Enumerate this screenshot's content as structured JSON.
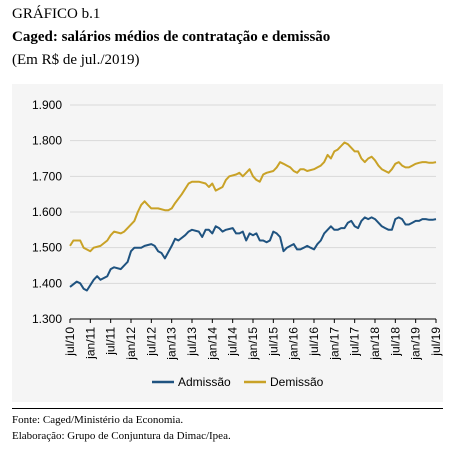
{
  "header": {
    "label": "GRÁFICO b.1",
    "title": "Caged: salários médios de contratação e demissão",
    "unit": "(Em R$ de jul./2019)"
  },
  "footer": {
    "source": "Fonte: Caged/Ministério da Economia.",
    "credit": "Elaboração: Grupo de Conjuntura da Dimac/Ipea."
  },
  "chart_data": {
    "type": "line",
    "title": "",
    "xlabel": "",
    "ylabel": "",
    "ylim": [
      1300,
      1900
    ],
    "yticks": [
      "1.900",
      "1.800",
      "1.700",
      "1.600",
      "1.500",
      "1.400",
      "1.300"
    ],
    "x_start": "2010-07",
    "x_end": "2019-07",
    "xticks": [
      "jul/10",
      "jan/11",
      "jul/11",
      "jan/12",
      "jul/12",
      "jan/13",
      "jul/13",
      "jan/14",
      "jul/14",
      "jan/15",
      "jul/15",
      "jan/16",
      "jul/16",
      "jan/17",
      "jul/17",
      "jan/18",
      "jul/18",
      "jan/19",
      "jul/19"
    ],
    "grid": true,
    "legend_position": "bottom",
    "series": [
      {
        "name": "Admissão",
        "color": "#1f5380",
        "values": [
          [
            0,
            1390
          ],
          [
            2,
            1405
          ],
          [
            3,
            1400
          ],
          [
            4,
            1385
          ],
          [
            5,
            1380
          ],
          [
            7,
            1410
          ],
          [
            8,
            1420
          ],
          [
            9,
            1410
          ],
          [
            11,
            1420
          ],
          [
            12,
            1440
          ],
          [
            13,
            1445
          ],
          [
            15,
            1440
          ],
          [
            17,
            1460
          ],
          [
            18,
            1490
          ],
          [
            19,
            1500
          ],
          [
            21,
            1500
          ],
          [
            22,
            1505
          ],
          [
            24,
            1510
          ],
          [
            25,
            1505
          ],
          [
            26,
            1490
          ],
          [
            27,
            1485
          ],
          [
            28,
            1470
          ],
          [
            30,
            1505
          ],
          [
            31,
            1525
          ],
          [
            32,
            1520
          ],
          [
            34,
            1535
          ],
          [
            35,
            1545
          ],
          [
            36,
            1550
          ],
          [
            38,
            1545
          ],
          [
            39,
            1530
          ],
          [
            40,
            1550
          ],
          [
            41,
            1550
          ],
          [
            42,
            1540
          ],
          [
            43,
            1560
          ],
          [
            44,
            1555
          ],
          [
            45,
            1545
          ],
          [
            46,
            1550
          ],
          [
            48,
            1555
          ],
          [
            49,
            1540
          ],
          [
            50,
            1540
          ],
          [
            51,
            1545
          ],
          [
            52,
            1520
          ],
          [
            53,
            1540
          ],
          [
            54,
            1535
          ],
          [
            55,
            1540
          ],
          [
            56,
            1520
          ],
          [
            57,
            1520
          ],
          [
            58,
            1515
          ],
          [
            59,
            1520
          ],
          [
            60,
            1545
          ],
          [
            61,
            1540
          ],
          [
            62,
            1530
          ],
          [
            63,
            1490
          ],
          [
            64,
            1500
          ],
          [
            65,
            1505
          ],
          [
            66,
            1510
          ],
          [
            67,
            1495
          ],
          [
            68,
            1495
          ],
          [
            69,
            1500
          ],
          [
            70,
            1505
          ],
          [
            71,
            1500
          ],
          [
            72,
            1495
          ],
          [
            73,
            1510
          ],
          [
            74,
            1520
          ],
          [
            75,
            1540
          ],
          [
            76,
            1550
          ],
          [
            77,
            1560
          ],
          [
            78,
            1550
          ],
          [
            79,
            1550
          ],
          [
            80,
            1555
          ],
          [
            81,
            1555
          ],
          [
            82,
            1570
          ],
          [
            83,
            1575
          ],
          [
            84,
            1560
          ],
          [
            85,
            1555
          ],
          [
            86,
            1575
          ],
          [
            87,
            1585
          ],
          [
            88,
            1580
          ],
          [
            89,
            1585
          ],
          [
            90,
            1580
          ],
          [
            91,
            1570
          ],
          [
            92,
            1560
          ],
          [
            93,
            1555
          ],
          [
            94,
            1550
          ],
          [
            95,
            1550
          ],
          [
            96,
            1580
          ],
          [
            97,
            1585
          ],
          [
            98,
            1580
          ],
          [
            99,
            1565
          ],
          [
            100,
            1565
          ],
          [
            101,
            1570
          ],
          [
            102,
            1575
          ],
          [
            103,
            1575
          ],
          [
            104,
            1580
          ],
          [
            105,
            1580
          ],
          [
            106,
            1578
          ],
          [
            107,
            1578
          ],
          [
            108,
            1580
          ]
        ]
      },
      {
        "name": "Demissão",
        "color": "#c9a227",
        "values": [
          [
            0,
            1505
          ],
          [
            1,
            1520
          ],
          [
            3,
            1520
          ],
          [
            4,
            1500
          ],
          [
            6,
            1490
          ],
          [
            7,
            1500
          ],
          [
            9,
            1505
          ],
          [
            11,
            1520
          ],
          [
            12,
            1535
          ],
          [
            13,
            1545
          ],
          [
            15,
            1540
          ],
          [
            16,
            1545
          ],
          [
            17,
            1555
          ],
          [
            19,
            1575
          ],
          [
            20,
            1600
          ],
          [
            21,
            1620
          ],
          [
            22,
            1630
          ],
          [
            23,
            1620
          ],
          [
            24,
            1610
          ],
          [
            26,
            1610
          ],
          [
            28,
            1605
          ],
          [
            29,
            1605
          ],
          [
            30,
            1610
          ],
          [
            31,
            1625
          ],
          [
            33,
            1650
          ],
          [
            35,
            1680
          ],
          [
            36,
            1685
          ],
          [
            38,
            1685
          ],
          [
            40,
            1680
          ],
          [
            41,
            1670
          ],
          [
            42,
            1680
          ],
          [
            43,
            1660
          ],
          [
            45,
            1670
          ],
          [
            46,
            1690
          ],
          [
            47,
            1700
          ],
          [
            49,
            1705
          ],
          [
            50,
            1710
          ],
          [
            51,
            1700
          ],
          [
            52,
            1710
          ],
          [
            53,
            1720
          ],
          [
            54,
            1700
          ],
          [
            55,
            1690
          ],
          [
            56,
            1685
          ],
          [
            57,
            1705
          ],
          [
            58,
            1710
          ],
          [
            60,
            1715
          ],
          [
            61,
            1725
          ],
          [
            62,
            1740
          ],
          [
            63,
            1735
          ],
          [
            64,
            1730
          ],
          [
            65,
            1725
          ],
          [
            66,
            1715
          ],
          [
            67,
            1710
          ],
          [
            68,
            1720
          ],
          [
            69,
            1720
          ],
          [
            70,
            1715
          ],
          [
            72,
            1720
          ],
          [
            73,
            1725
          ],
          [
            74,
            1730
          ],
          [
            75,
            1740
          ],
          [
            76,
            1760
          ],
          [
            77,
            1750
          ],
          [
            78,
            1770
          ],
          [
            79,
            1775
          ],
          [
            80,
            1785
          ],
          [
            81,
            1795
          ],
          [
            82,
            1790
          ],
          [
            83,
            1780
          ],
          [
            84,
            1770
          ],
          [
            85,
            1770
          ],
          [
            86,
            1750
          ],
          [
            87,
            1740
          ],
          [
            88,
            1750
          ],
          [
            89,
            1755
          ],
          [
            90,
            1745
          ],
          [
            91,
            1730
          ],
          [
            92,
            1720
          ],
          [
            93,
            1715
          ],
          [
            94,
            1710
          ],
          [
            95,
            1720
          ],
          [
            96,
            1735
          ],
          [
            97,
            1740
          ],
          [
            98,
            1730
          ],
          [
            99,
            1725
          ],
          [
            100,
            1725
          ],
          [
            101,
            1730
          ],
          [
            102,
            1735
          ],
          [
            103,
            1738
          ],
          [
            104,
            1740
          ],
          [
            105,
            1740
          ],
          [
            106,
            1738
          ],
          [
            107,
            1738
          ],
          [
            108,
            1740
          ]
        ]
      }
    ]
  }
}
